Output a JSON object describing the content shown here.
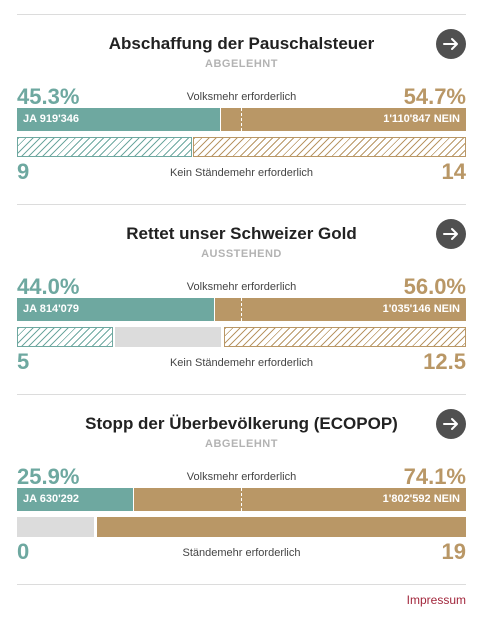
{
  "votes": [
    {
      "title": "Abschaffung der Pauschalsteuer",
      "status": "ABGELEHNT",
      "ja_percent": "45.3%",
      "nein_percent": "54.7%",
      "ja_share": 0.453,
      "volksmehr_label": "Volksmehr erforderlich",
      "ja_votes": "JA 919'346",
      "nein_votes": "1'110'847 NEIN",
      "staendemehr_label": "Kein Ständemehr erforderlich",
      "ja_cantons": "9",
      "nein_cantons": "14",
      "cantons_ja_share": 0.391,
      "cantons_pending_share": 0.0
    },
    {
      "title": "Rettet unser Schweizer Gold",
      "status": "AUSSTEHEND",
      "ja_percent": "44.0%",
      "nein_percent": "56.0%",
      "ja_share": 0.44,
      "volksmehr_label": "Volksmehr erforderlich",
      "ja_votes": "JA 814'079",
      "nein_votes": "1'035'146 NEIN",
      "staendemehr_label": "Kein Ständemehr erforderlich",
      "ja_cantons": "5",
      "nein_cantons": "12.5",
      "cantons_ja_share": 0.217,
      "cantons_pending_share": 0.239
    },
    {
      "title": "Stopp der Überbevölkerung (ECOPOP)",
      "status": "ABGELEHNT",
      "ja_percent": "25.9%",
      "nein_percent": "74.1%",
      "ja_share": 0.259,
      "volksmehr_label": "Volksmehr erforderlich",
      "ja_votes": "JA 630'292",
      "nein_votes": "1'802'592 NEIN",
      "staendemehr_label": "Ständemehr erforderlich",
      "ja_cantons": "0",
      "nein_cantons": "19",
      "cantons_ja_share": 0.0,
      "cantons_pending_share": 0.174
    }
  ],
  "footer": {
    "impressum": "Impressum"
  },
  "colors": {
    "ja": "#6ea8a0",
    "nein": "#b99766",
    "pending": "#dcdcdc",
    "link": "#a2273c"
  },
  "icons": {
    "more": "arrow-right-circle-icon"
  }
}
